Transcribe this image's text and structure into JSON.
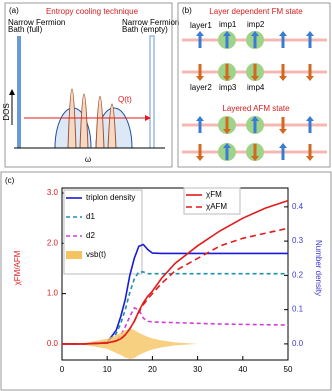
{
  "panel_a": {
    "label": "(a)",
    "title": "Entropy cooling technique",
    "left_bath": [
      "Narrow Fermion",
      "Bath (full)"
    ],
    "right_bath": [
      "Narrow Fermion",
      "Bath (empty)"
    ],
    "ylabel": "DOS",
    "xlabel": "ω",
    "flow": "Q(t)"
  },
  "panel_b": {
    "label": "(b)",
    "title": "Layer dependent FM state",
    "layer1": "layer1",
    "layer2": "layer2",
    "imp1": "imp1",
    "imp2": "imp2",
    "imp3": "imp3",
    "imp4": "imp4",
    "title2": "Layered AFM state"
  },
  "chart_data": {
    "type": "line",
    "panel_label": "(c)",
    "ylabel": "χFM/AFM",
    "y2label": "Number density",
    "xlim": [
      0,
      50
    ],
    "xticks": [
      0,
      10,
      20,
      30,
      40,
      50
    ],
    "ylim": [
      -0.32,
      3.1
    ],
    "yticks": [
      {
        "value": 0,
        "label": "0.0"
      },
      {
        "value": 1,
        "label": "1.0"
      },
      {
        "value": 2,
        "label": "2.0"
      },
      {
        "value": 3,
        "label": "3.0"
      }
    ],
    "y2lim": [
      -0.047,
      0.455
    ],
    "y2ticks": [
      {
        "value": 0,
        "label": "0.0"
      },
      0.1,
      0.2,
      0.3,
      0.4
    ],
    "x": [
      0,
      5,
      10,
      12,
      13,
      14,
      15,
      16,
      17,
      18,
      19,
      20,
      22,
      25,
      30,
      35,
      40,
      45,
      50
    ],
    "series": [
      {
        "name": "triplon density",
        "color": "#1a1ad6",
        "dash": "",
        "axis": "y2",
        "legend": 1,
        "values": [
          0,
          0,
          0.005,
          0.04,
          0.08,
          0.13,
          0.2,
          0.25,
          0.285,
          0.29,
          0.275,
          0.265,
          0.264,
          0.264,
          0.264,
          0.264,
          0.264,
          0.264,
          0.264
        ]
      },
      {
        "name": "d1",
        "color": "#1e8fb0",
        "dash": "4 3",
        "axis": "y2",
        "legend": 1,
        "values": [
          0,
          0,
          0.004,
          0.03,
          0.06,
          0.1,
          0.15,
          0.19,
          0.21,
          0.21,
          0.205,
          0.205,
          0.205,
          0.205,
          0.205,
          0.205,
          0.205,
          0.205,
          0.205
        ]
      },
      {
        "name": "d2",
        "color": "#d040d8",
        "dash": "4 3",
        "axis": "y2",
        "legend": 1,
        "values": [
          0,
          0,
          0.002,
          0.01,
          0.025,
          0.05,
          0.08,
          0.105,
          0.1,
          0.075,
          0.066,
          0.064,
          0.063,
          0.062,
          0.06,
          0.058,
          0.057,
          0.056,
          0.055
        ]
      },
      {
        "name": "vsb(t)",
        "color": "#f5c462",
        "fill": true,
        "axis": "y",
        "legend": 1,
        "values": [
          0,
          0.02,
          0.1,
          0.18,
          0.22,
          0.27,
          0.3,
          0.28,
          0.22,
          0.18,
          0.14,
          0.11,
          0.07,
          0.03,
          0,
          0,
          0,
          0,
          0
        ]
      },
      {
        "name": "χFM",
        "color": "#e31a1c",
        "dash": "",
        "axis": "y",
        "legend": 2,
        "values": [
          0,
          0,
          0.02,
          0.06,
          0.1,
          0.18,
          0.3,
          0.45,
          0.65,
          0.82,
          0.95,
          1.05,
          1.3,
          1.6,
          1.95,
          2.25,
          2.5,
          2.7,
          2.85
        ]
      },
      {
        "name": "χAFM",
        "color": "#e31a1c",
        "dash": "6 4",
        "axis": "y",
        "legend": 2,
        "values": [
          0,
          0,
          0.02,
          0.06,
          0.1,
          0.18,
          0.3,
          0.45,
          0.63,
          0.78,
          0.9,
          1.0,
          1.2,
          1.45,
          1.7,
          1.95,
          2.1,
          2.2,
          2.3
        ]
      }
    ]
  }
}
